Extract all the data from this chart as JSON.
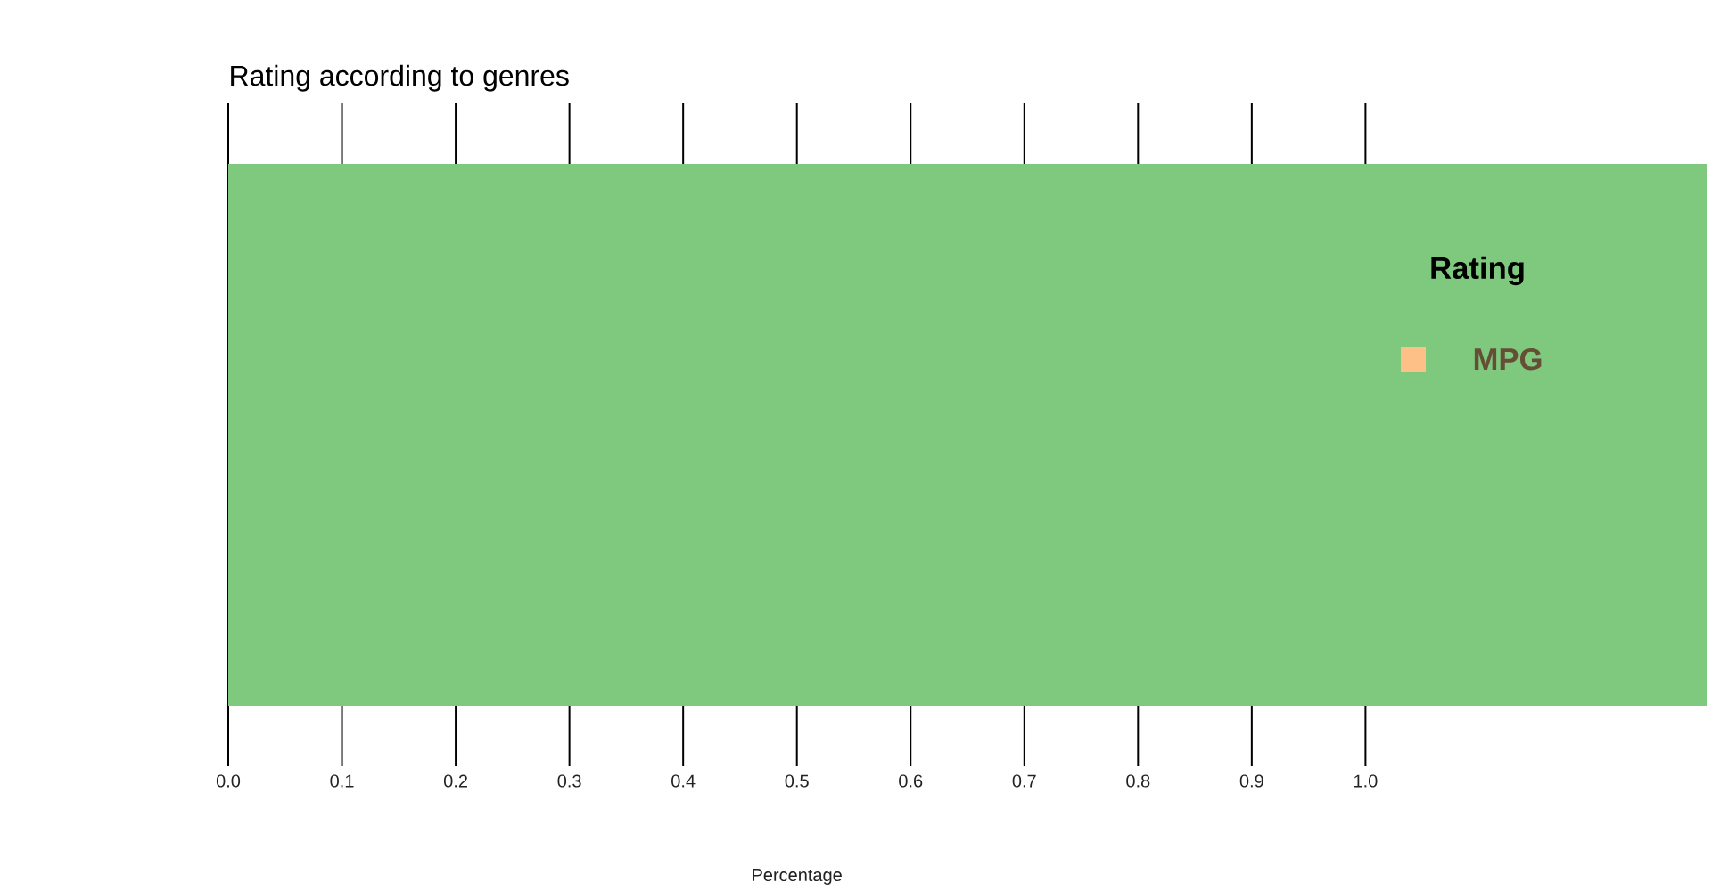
{
  "chart_data": {
    "type": "bar",
    "orientation": "horizontal",
    "title": "Rating according to genres",
    "xlabel": "Percentage",
    "legend_title": "Rating",
    "categories": [
      null
    ],
    "series": [
      {
        "color": "#7fc97f",
        "values": [
          1.3
        ]
      },
      {
        "name": "MPG",
        "color": "#fdc086",
        "values": [
          null
        ]
      }
    ],
    "xlim": [
      0,
      1.3
    ],
    "xticks": [
      {
        "value": 0,
        "label": "0.0"
      },
      0.1,
      0.2,
      0.3,
      0.4,
      0.5,
      0.6,
      0.7,
      0.8,
      0.9,
      {
        "value": 1,
        "label": "1.0"
      }
    ],
    "grid": "x",
    "legend": "top right"
  }
}
